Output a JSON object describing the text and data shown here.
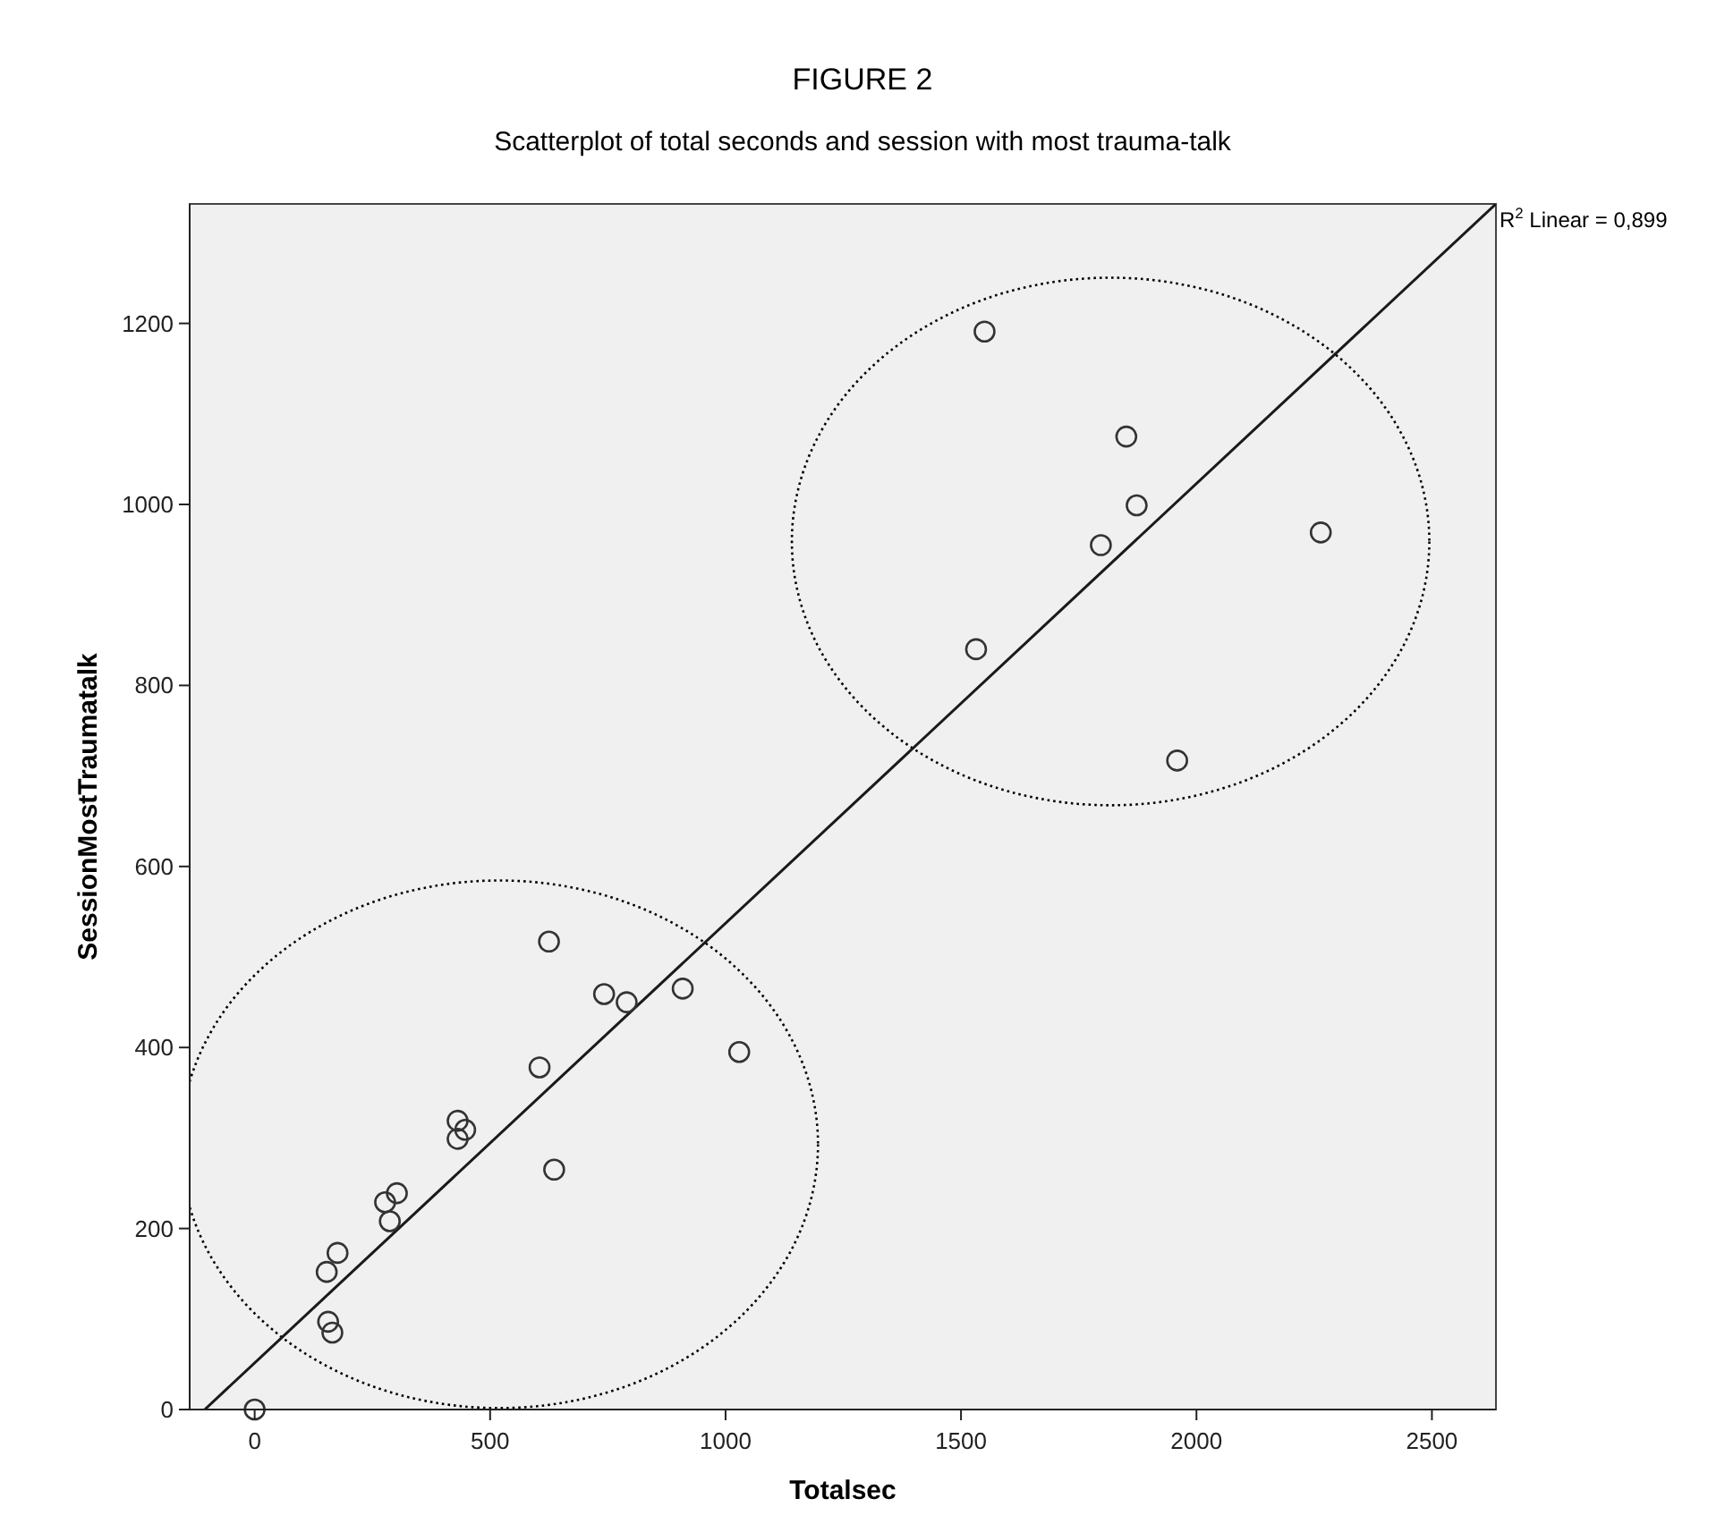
{
  "chart_data": {
    "type": "scatter",
    "title": "FIGURE 2",
    "subtitle": "Scatterplot of total seconds and session with most trauma-talk",
    "xlabel": "Totalsec",
    "ylabel": "SessionMostTraumatalk",
    "xlim": [
      -138,
      2636
    ],
    "ylim": [
      0,
      1332
    ],
    "xticks": [
      0,
      500,
      1000,
      1500,
      2000,
      2500
    ],
    "yticks": [
      0,
      200,
      400,
      600,
      800,
      1000,
      1200
    ],
    "grid": false,
    "marker": "circle",
    "series": [
      {
        "color": "#333333",
        "x": [
          1550,
          1851,
          1873,
          1797,
          2264,
          1532,
          1959,
          625,
          742,
          790,
          909,
          1029,
          605,
          431,
          447,
          431,
          636,
          277,
          302,
          287,
          153,
          176,
          156,
          165,
          0
        ],
        "values": [
          1191,
          1075,
          999,
          955,
          969,
          840,
          717,
          517,
          459,
          450,
          465,
          395,
          378,
          319,
          309,
          299,
          265,
          229,
          239,
          208,
          152,
          173,
          97,
          85,
          0
        ]
      },
      {
        "type": "line",
        "color": "#1a1a1a",
        "line_style": "solid",
        "marker": "none",
        "x": [
          -106,
          2636
        ],
        "values": [
          0,
          1332
        ]
      }
    ],
    "annotations": [
      {
        "text": "R$^{2}$ Linear = 0,899",
        "x": 2636,
        "y": 1332
      }
    ]
  }
}
